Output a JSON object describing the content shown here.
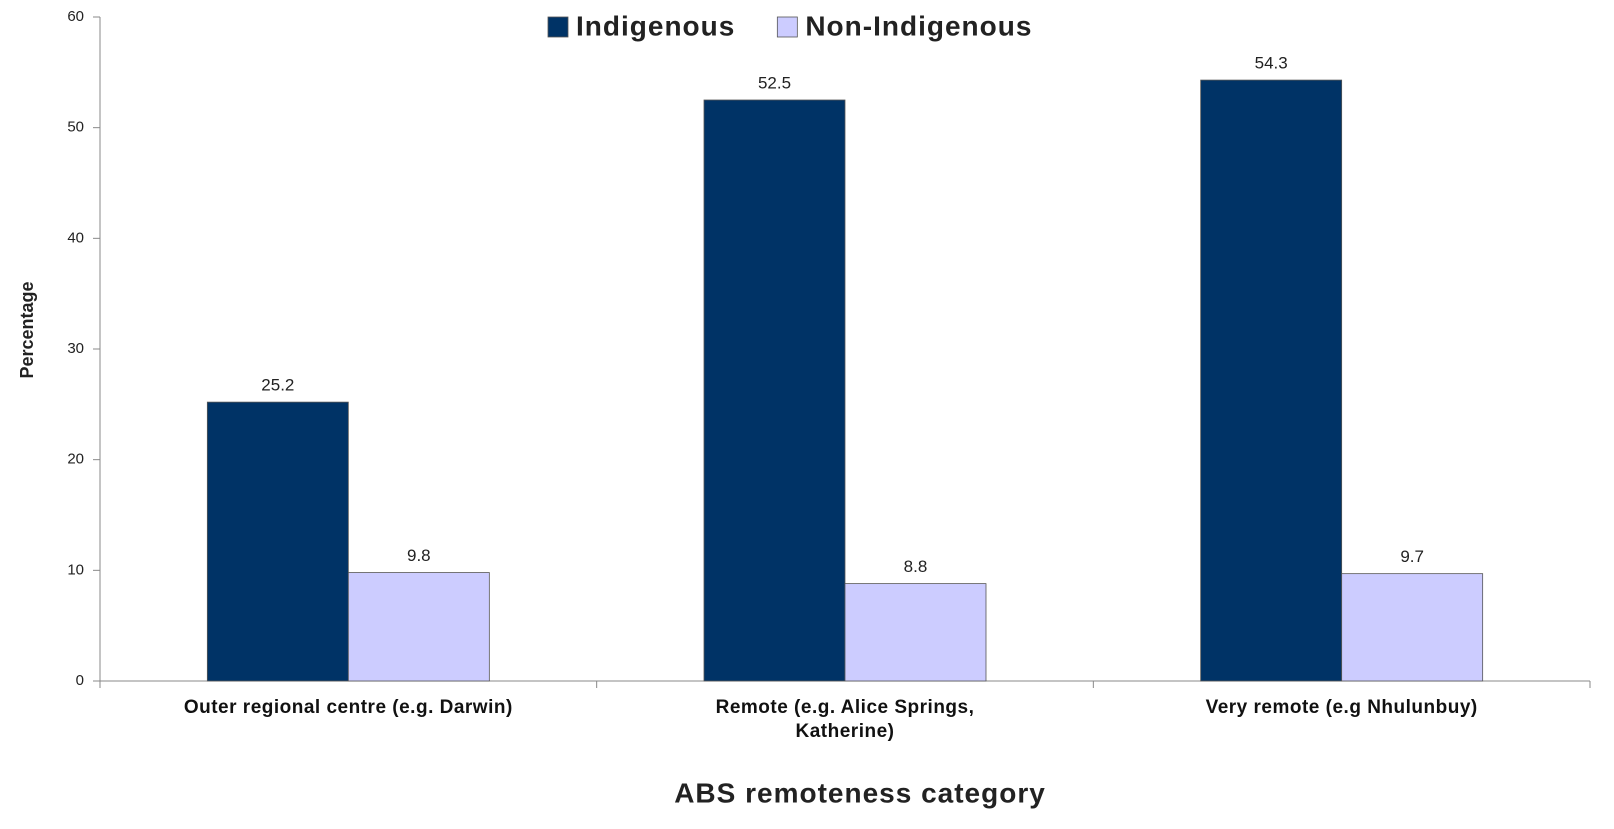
{
  "chart_data": {
    "type": "bar",
    "x_label": "ABS remoteness category",
    "y_label": "Percentage",
    "categories": [
      "Outer regional centre (e.g. Darwin)",
      "Remote (e.g. Alice Springs,\nKatherine)",
      "Very remote (e.g Nhulunbuy)"
    ],
    "series": [
      {
        "name": "Indigenous",
        "color": "#003366",
        "values": [
          25.2,
          52.5,
          54.3
        ]
      },
      {
        "name": "Non-Indigenous",
        "color": "#ccccff",
        "values": [
          9.8,
          8.8,
          9.7
        ]
      }
    ],
    "ylim": [
      0,
      60
    ],
    "yticks": [
      0,
      10,
      20,
      30,
      40,
      50,
      60
    ],
    "legend": "top"
  }
}
